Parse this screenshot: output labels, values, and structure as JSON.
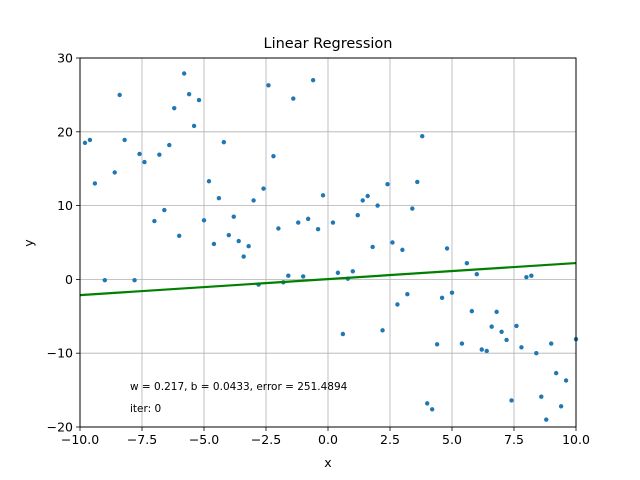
{
  "chart_data": {
    "type": "scatter",
    "title": "Linear Regression",
    "xlabel": "x",
    "ylabel": "y",
    "xlim": [
      -10,
      10
    ],
    "ylim": [
      -20,
      30
    ],
    "grid": true,
    "x_ticks": [
      -10.0,
      -7.5,
      -5.0,
      -2.5,
      0.0,
      2.5,
      5.0,
      7.5,
      10.0
    ],
    "x_tick_labels": [
      "−10.0",
      "−7.5",
      "−5.0",
      "−2.5",
      "0.0",
      "2.5",
      "5.0",
      "7.5",
      "10.0"
    ],
    "y_ticks": [
      -20,
      -10,
      0,
      10,
      20,
      30
    ],
    "y_tick_labels": [
      "−20",
      "−10",
      "0",
      "10",
      "20",
      "30"
    ],
    "points": [
      [
        -9.8,
        18.5
      ],
      [
        -9.6,
        18.9
      ],
      [
        -9.4,
        13.0
      ],
      [
        -9.0,
        -0.1
      ],
      [
        -8.6,
        14.5
      ],
      [
        -8.4,
        25.0
      ],
      [
        -8.2,
        18.9
      ],
      [
        -7.8,
        -0.1
      ],
      [
        -7.6,
        17.0
      ],
      [
        -7.4,
        15.9
      ],
      [
        -7.0,
        7.9
      ],
      [
        -6.8,
        16.9
      ],
      [
        -6.6,
        9.4
      ],
      [
        -6.4,
        18.2
      ],
      [
        -6.2,
        23.2
      ],
      [
        -6.0,
        5.9
      ],
      [
        -5.8,
        27.9
      ],
      [
        -5.6,
        25.1
      ],
      [
        -5.4,
        20.8
      ],
      [
        -5.2,
        24.3
      ],
      [
        -5.0,
        8.0
      ],
      [
        -4.8,
        13.3
      ],
      [
        -4.6,
        4.8
      ],
      [
        -4.4,
        11.0
      ],
      [
        -4.2,
        18.6
      ],
      [
        -4.0,
        6.0
      ],
      [
        -3.8,
        8.5
      ],
      [
        -3.6,
        5.2
      ],
      [
        -3.4,
        3.1
      ],
      [
        -3.2,
        4.5
      ],
      [
        -3.0,
        10.7
      ],
      [
        -2.8,
        -0.7
      ],
      [
        -2.6,
        12.3
      ],
      [
        -2.4,
        26.3
      ],
      [
        -2.2,
        16.7
      ],
      [
        -2.0,
        6.9
      ],
      [
        -1.8,
        -0.4
      ],
      [
        -1.6,
        0.5
      ],
      [
        -1.4,
        24.5
      ],
      [
        -1.2,
        7.7
      ],
      [
        -1.0,
        0.4
      ],
      [
        -0.8,
        8.2
      ],
      [
        -0.6,
        27.0
      ],
      [
        -0.4,
        6.8
      ],
      [
        -0.2,
        11.4
      ],
      [
        0.2,
        7.7
      ],
      [
        0.4,
        0.9
      ],
      [
        0.6,
        -7.4
      ],
      [
        0.8,
        0.1
      ],
      [
        1.0,
        1.1
      ],
      [
        1.2,
        8.7
      ],
      [
        1.4,
        10.7
      ],
      [
        1.6,
        11.3
      ],
      [
        1.8,
        4.4
      ],
      [
        2.0,
        10.0
      ],
      [
        2.2,
        -6.9
      ],
      [
        2.4,
        12.9
      ],
      [
        2.6,
        5.0
      ],
      [
        2.8,
        -3.4
      ],
      [
        3.0,
        4.0
      ],
      [
        3.2,
        -2.0
      ],
      [
        3.4,
        9.6
      ],
      [
        3.6,
        13.2
      ],
      [
        3.8,
        19.4
      ],
      [
        4.0,
        -16.8
      ],
      [
        4.2,
        -17.6
      ],
      [
        4.4,
        -8.8
      ],
      [
        4.6,
        -2.5
      ],
      [
        4.8,
        4.2
      ],
      [
        5.0,
        -1.8
      ],
      [
        5.4,
        -8.7
      ],
      [
        5.6,
        2.2
      ],
      [
        5.8,
        -4.3
      ],
      [
        6.0,
        0.7
      ],
      [
        6.2,
        -9.5
      ],
      [
        6.4,
        -9.7
      ],
      [
        6.6,
        -6.4
      ],
      [
        6.8,
        -4.4
      ],
      [
        7.0,
        -7.1
      ],
      [
        7.2,
        -8.2
      ],
      [
        7.4,
        -16.4
      ],
      [
        7.6,
        -6.3
      ],
      [
        7.8,
        -9.2
      ],
      [
        8.0,
        0.3
      ],
      [
        8.2,
        0.5
      ],
      [
        8.4,
        -10.0
      ],
      [
        8.6,
        -15.9
      ],
      [
        8.8,
        -19.0
      ],
      [
        9.0,
        -8.7
      ],
      [
        9.2,
        -12.7
      ],
      [
        9.4,
        -17.2
      ],
      [
        9.6,
        -13.7
      ],
      [
        10.0,
        -8.1
      ]
    ],
    "regression_line": {
      "w": 0.217,
      "b": 0.0433,
      "color": "#008000"
    },
    "point_color": "#1f77b4",
    "annotations": {
      "params": "w = 0.217, b = 0.0433, error = 251.4894",
      "iter": "iter: 0"
    }
  }
}
